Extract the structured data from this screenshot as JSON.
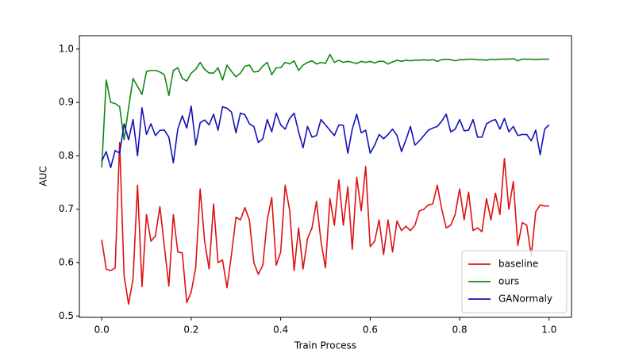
{
  "chart_data": {
    "type": "line",
    "xlabel": "Train Process",
    "ylabel": "AUC",
    "x": [
      0,
      0.01,
      0.02,
      0.03,
      0.04,
      0.05,
      0.06,
      0.07,
      0.08,
      0.09,
      0.1,
      0.11,
      0.12,
      0.13,
      0.14,
      0.15,
      0.16,
      0.17,
      0.18,
      0.19,
      0.2,
      0.21,
      0.22,
      0.23,
      0.24,
      0.25,
      0.26,
      0.27,
      0.28,
      0.29,
      0.3,
      0.31,
      0.32,
      0.33,
      0.34,
      0.35,
      0.36,
      0.37,
      0.38,
      0.39,
      0.4,
      0.41,
      0.42,
      0.43,
      0.44,
      0.45,
      0.46,
      0.47,
      0.48,
      0.49,
      0.5,
      0.51,
      0.52,
      0.53,
      0.54,
      0.55,
      0.56,
      0.57,
      0.58,
      0.59,
      0.6,
      0.61,
      0.62,
      0.63,
      0.64,
      0.65,
      0.66,
      0.67,
      0.68,
      0.69,
      0.7,
      0.71,
      0.72,
      0.73,
      0.74,
      0.75,
      0.76,
      0.77,
      0.78,
      0.79,
      0.8,
      0.81,
      0.82,
      0.83,
      0.84,
      0.85,
      0.86,
      0.87,
      0.88,
      0.89,
      0.9,
      0.91,
      0.92,
      0.93,
      0.94,
      0.95,
      0.96,
      0.97,
      0.98,
      0.99,
      1
    ],
    "series": [
      {
        "name": "baseline",
        "color": "#dd1111",
        "values": [
          0.643,
          0.588,
          0.585,
          0.59,
          0.825,
          0.575,
          0.522,
          0.57,
          0.745,
          0.555,
          0.69,
          0.64,
          0.65,
          0.705,
          0.63,
          0.556,
          0.69,
          0.62,
          0.618,
          0.525,
          0.545,
          0.59,
          0.738,
          0.64,
          0.588,
          0.71,
          0.6,
          0.605,
          0.553,
          0.615,
          0.685,
          0.68,
          0.703,
          0.68,
          0.6,
          0.578,
          0.595,
          0.68,
          0.722,
          0.595,
          0.62,
          0.745,
          0.698,
          0.585,
          0.665,
          0.588,
          0.645,
          0.665,
          0.715,
          0.64,
          0.59,
          0.72,
          0.67,
          0.755,
          0.67,
          0.742,
          0.625,
          0.76,
          0.697,
          0.78,
          0.63,
          0.64,
          0.68,
          0.615,
          0.68,
          0.62,
          0.678,
          0.66,
          0.668,
          0.66,
          0.67,
          0.697,
          0.7,
          0.708,
          0.71,
          0.745,
          0.7,
          0.665,
          0.67,
          0.69,
          0.738,
          0.68,
          0.732,
          0.66,
          0.665,
          0.658,
          0.72,
          0.68,
          0.73,
          0.69,
          0.795,
          0.7,
          0.752,
          0.632,
          0.675,
          0.67,
          0.612,
          0.695,
          0.708,
          0.706,
          0.706
        ]
      },
      {
        "name": "ours",
        "color": "#118811",
        "values": [
          0.778,
          0.942,
          0.9,
          0.898,
          0.892,
          0.83,
          0.89,
          0.945,
          0.93,
          0.915,
          0.958,
          0.96,
          0.96,
          0.957,
          0.952,
          0.913,
          0.96,
          0.965,
          0.945,
          0.94,
          0.955,
          0.962,
          0.975,
          0.962,
          0.955,
          0.955,
          0.965,
          0.942,
          0.97,
          0.958,
          0.948,
          0.955,
          0.968,
          0.97,
          0.957,
          0.958,
          0.968,
          0.975,
          0.952,
          0.965,
          0.965,
          0.975,
          0.972,
          0.978,
          0.96,
          0.97,
          0.975,
          0.978,
          0.972,
          0.975,
          0.973,
          0.99,
          0.975,
          0.979,
          0.975,
          0.977,
          0.975,
          0.973,
          0.977,
          0.975,
          0.977,
          0.974,
          0.977,
          0.977,
          0.972,
          0.976,
          0.979,
          0.977,
          0.979,
          0.978,
          0.979,
          0.979,
          0.98,
          0.979,
          0.98,
          0.977,
          0.98,
          0.981,
          0.98,
          0.978,
          0.98,
          0.98,
          0.981,
          0.981,
          0.98,
          0.98,
          0.979,
          0.981,
          0.98,
          0.981,
          0.981,
          0.981,
          0.982,
          0.978,
          0.981,
          0.981,
          0.981,
          0.98,
          0.981,
          0.981,
          0.981
        ]
      },
      {
        "name": "GANormaly",
        "color": "#1111bb",
        "values": [
          0.79,
          0.808,
          0.778,
          0.81,
          0.805,
          0.86,
          0.83,
          0.868,
          0.8,
          0.89,
          0.84,
          0.86,
          0.838,
          0.848,
          0.848,
          0.835,
          0.787,
          0.85,
          0.875,
          0.852,
          0.893,
          0.82,
          0.862,
          0.867,
          0.858,
          0.878,
          0.848,
          0.892,
          0.889,
          0.882,
          0.843,
          0.88,
          0.877,
          0.86,
          0.855,
          0.825,
          0.832,
          0.868,
          0.845,
          0.88,
          0.858,
          0.85,
          0.87,
          0.88,
          0.845,
          0.815,
          0.855,
          0.835,
          0.838,
          0.868,
          0.858,
          0.848,
          0.838,
          0.858,
          0.857,
          0.805,
          0.85,
          0.878,
          0.843,
          0.848,
          0.805,
          0.82,
          0.84,
          0.832,
          0.84,
          0.85,
          0.838,
          0.808,
          0.83,
          0.855,
          0.82,
          0.828,
          0.838,
          0.848,
          0.852,
          0.855,
          0.865,
          0.878,
          0.845,
          0.85,
          0.868,
          0.847,
          0.848,
          0.868,
          0.835,
          0.835,
          0.86,
          0.865,
          0.868,
          0.85,
          0.87,
          0.845,
          0.855,
          0.838,
          0.84,
          0.84,
          0.828,
          0.848,
          0.802,
          0.85,
          0.858
        ]
      }
    ],
    "xlim": [
      -0.05,
      1.05
    ],
    "xticks": [
      {
        "value": 0,
        "label": "0.0"
      },
      0.2,
      0.4,
      0.6,
      0.8,
      {
        "value": 1,
        "label": "1.0"
      }
    ],
    "ylim": [
      0.4975,
      1.025
    ],
    "yticks": [
      0.5,
      0.6,
      0.7,
      0.8,
      0.9,
      {
        "value": 1,
        "label": "1.0"
      }
    ],
    "grid": false,
    "legend": "lower right"
  }
}
